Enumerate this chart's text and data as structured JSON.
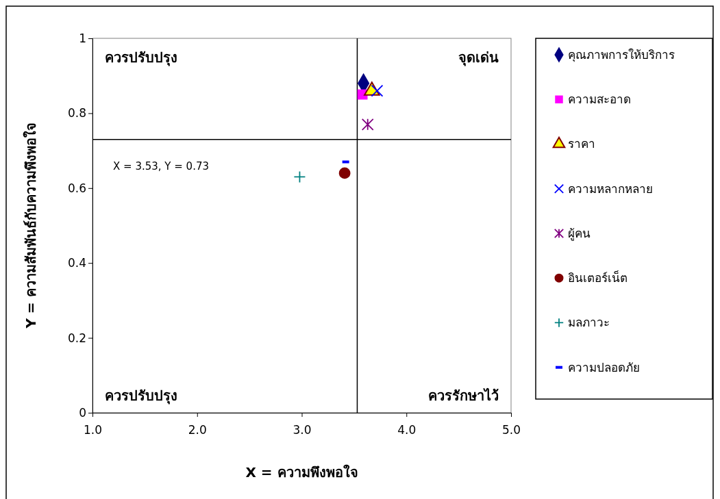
{
  "chart_data": {
    "type": "scatter",
    "xlabel": "X = ความพึงพอใจ",
    "ylabel": "Y = ความสัมพันธ์กับความพึงพอใจ",
    "xlim": [
      1,
      5
    ],
    "xticks": [
      {
        "value": 1,
        "label": "1.0"
      },
      {
        "value": 2,
        "label": "2.0"
      },
      {
        "value": 3,
        "label": "3.0"
      },
      {
        "value": 4,
        "label": "4.0"
      },
      {
        "value": 5,
        "label": "5.0"
      }
    ],
    "ylim": [
      0,
      1
    ],
    "yticks": [
      0,
      0.2,
      0.4,
      0.6,
      0.8,
      1
    ],
    "grid": false,
    "legend": "right",
    "ref_lines": [
      {
        "axis": "x",
        "value": 3.53,
        "color": "#000000"
      },
      {
        "axis": "y",
        "value": 0.73,
        "color": "#000000",
        "label": "X = 3.53, Y = 0.73"
      }
    ],
    "annotations": [
      "ควรปรับปรุง",
      "จุดเด่น",
      "ควรปรับปรุง",
      "ควรรักษาไว้"
    ],
    "series": [
      {
        "name": "คุณภาพการให้บริการ",
        "color": "#000080",
        "marker": "diamond",
        "x": [
          3.59
        ],
        "values": [
          0.88
        ]
      },
      {
        "name": "ความสะอาด",
        "color": "#ff00ff",
        "marker": "square",
        "x": [
          3.58
        ],
        "values": [
          0.85
        ]
      },
      {
        "name": "ราคา",
        "color": "#ffff00",
        "marker": "triangle",
        "x": [
          3.67
        ],
        "values": [
          0.86
        ]
      },
      {
        "name": "ความหลากหลาย",
        "color": "#0000ff",
        "marker": "x",
        "x": [
          3.72
        ],
        "values": [
          0.86
        ]
      },
      {
        "name": "ผู้คน",
        "color": "#800080",
        "marker": "cross",
        "x": [
          3.63
        ],
        "values": [
          0.77
        ]
      },
      {
        "name": "อินเตอร์เน็ต",
        "color": "#800000",
        "marker": "circle",
        "x": [
          3.41
        ],
        "values": [
          0.64
        ]
      },
      {
        "name": "มลภาวะ",
        "color": "#008080",
        "marker": "plus",
        "x": [
          2.98
        ],
        "values": [
          0.63
        ]
      },
      {
        "name": "ความปลอดภัย",
        "color": "#0000ff",
        "x": [
          3.42
        ],
        "values": [
          0.67
        ]
      }
    ]
  }
}
